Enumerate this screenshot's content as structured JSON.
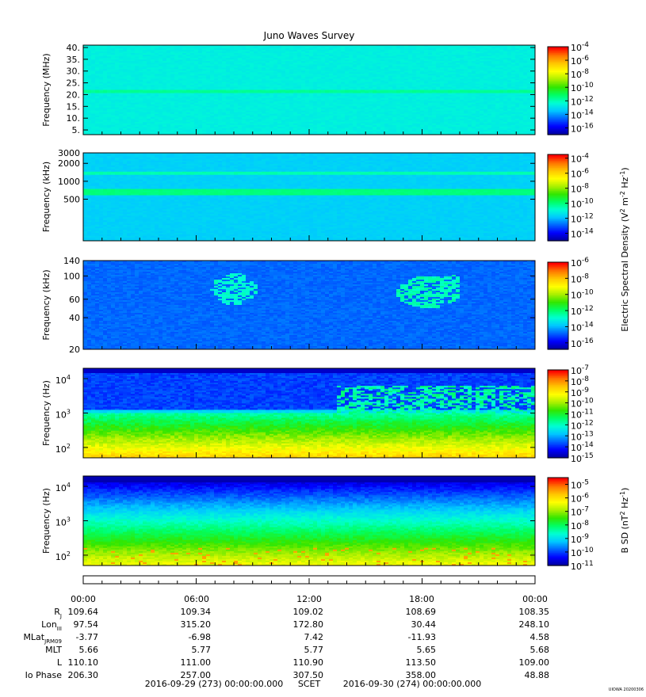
{
  "title": "Juno Waves Survey",
  "stamp": "UIOWA 20200306",
  "colors": {
    "colormap": [
      "#0000a0",
      "#0000ff",
      "#0064ff",
      "#00c8ff",
      "#00ffd2",
      "#00ff64",
      "#32e600",
      "#aaf000",
      "#ffff00",
      "#ffc800",
      "#ff7800",
      "#ff0000"
    ]
  },
  "chart_data": [
    {
      "type": "heatmap",
      "name": "hf-high",
      "ylabel": "Frequency (MHz)",
      "yscale": "linear",
      "ylim": [
        3,
        41
      ],
      "yticks": [
        "40.",
        "35.",
        "30.",
        "25.",
        "20.",
        "15.",
        "10.",
        "5."
      ],
      "ytick_values": [
        40,
        35,
        30,
        25,
        20,
        15,
        10,
        5
      ],
      "colorbar": {
        "ticks_base": "10",
        "ticks_exp": [
          "-4",
          "-6",
          "-8",
          "-10",
          "-12",
          "-14",
          "-16"
        ],
        "clim_log": [
          -17,
          -4
        ]
      },
      "background_level": -12.6,
      "bands": [
        {
          "from": 20.5,
          "to": 22.0,
          "level": -11.6
        }
      ]
    },
    {
      "type": "heatmap",
      "name": "hf-low",
      "ylabel": "Frequency (kHz)",
      "yscale": "log",
      "ylim": [
        100,
        3000
      ],
      "yticks": [
        "3000",
        "2000",
        "1000",
        "500"
      ],
      "ytick_values": [
        3000,
        2000,
        1000,
        500
      ],
      "colorbar": {
        "ticks_base": "10",
        "ticks_exp": [
          "-4",
          "-6",
          "-8",
          "-10",
          "-12",
          "-14"
        ],
        "clim_log": [
          -15,
          -3.5
        ]
      },
      "background_level": -11.7,
      "bands": [
        {
          "from": 580,
          "to": 720,
          "level": -10.0
        },
        {
          "from": 1300,
          "to": 1450,
          "level": -10.5
        }
      ]
    },
    {
      "type": "heatmap",
      "name": "lf",
      "ylabel": "Frequency (kHz)",
      "yscale": "log",
      "ylim": [
        20,
        140
      ],
      "yticks": [
        "140",
        "100",
        "60",
        "40",
        "20"
      ],
      "ytick_values": [
        140,
        100,
        60,
        40,
        20
      ],
      "colorbar": {
        "ticks_base": "10",
        "ticks_exp": [
          "-6",
          "-8",
          "-10",
          "-12",
          "-14",
          "-16"
        ],
        "clim_log": [
          -16.8,
          -6
        ]
      },
      "background_level": -14.8
    },
    {
      "type": "heatmap",
      "name": "e-field-low",
      "ylabel": "Frequency (Hz)",
      "yscale": "log",
      "ylim": [
        50,
        20000
      ],
      "yticks_base": "10",
      "yticks_exp": [
        "4",
        "3",
        "2"
      ],
      "ytick_values": [
        10000,
        1000,
        100
      ],
      "colorbar": {
        "ticks_base": "10",
        "ticks_exp": [
          "-7",
          "-8",
          "-9",
          "-10",
          "-11",
          "-12",
          "-13",
          "-14",
          "-15"
        ],
        "clim_log": [
          -15,
          -7
        ]
      }
    },
    {
      "type": "heatmap",
      "name": "b-field",
      "ylabel": "Frequency (Hz)",
      "yscale": "log",
      "ylim": [
        50,
        20000
      ],
      "yticks_base": "10",
      "yticks_exp": [
        "4",
        "3",
        "2"
      ],
      "ytick_values": [
        10000,
        1000,
        100
      ],
      "colorbar": {
        "ticks_base": "10",
        "ticks_exp": [
          "-5",
          "-6",
          "-7",
          "-8",
          "-9",
          "-10",
          "-11"
        ],
        "clim_log": [
          -11,
          -4.5
        ]
      }
    }
  ],
  "colorbar_labels": {
    "electric": "Electric Spectral Density (V",
    "electric_e1": "2",
    "electric_mid": " m",
    "electric_e2": "-2",
    "electric_mid2": " Hz",
    "electric_e3": "-1",
    "electric_end": ")",
    "bsd": "B SD (nT",
    "bsd_e1": "2",
    "bsd_mid": " Hz",
    "bsd_e2": "-1",
    "bsd_end": ")"
  },
  "ephemeris": {
    "times": [
      "00:00",
      "06:00",
      "12:00",
      "18:00",
      "00:00"
    ],
    "rows": [
      {
        "label": "R",
        "sub": "J",
        "values": [
          "109.64",
          "109.34",
          "109.02",
          "108.69",
          "108.35"
        ]
      },
      {
        "label": "Lon",
        "sub": "III",
        "values": [
          "97.54",
          "315.20",
          "172.80",
          "30.44",
          "248.10"
        ]
      },
      {
        "label": "MLat",
        "sub": "JRM09",
        "values": [
          "-3.77",
          "-6.98",
          "7.42",
          "-11.93",
          "4.58"
        ]
      },
      {
        "label": "MLT",
        "sub": "",
        "values": [
          "5.66",
          "5.77",
          "5.77",
          "5.65",
          "5.68"
        ]
      },
      {
        "label": "L",
        "sub": "",
        "values": [
          "110.10",
          "111.00",
          "110.90",
          "113.50",
          "109.00"
        ]
      },
      {
        "label": "Io Phase",
        "sub": "",
        "values": [
          "206.30",
          "257.00",
          "307.50",
          "358.00",
          "48.88"
        ]
      }
    ],
    "range_start": "2016-09-29 (273) 00:00:00.000",
    "range_label": "SCET",
    "range_end": "2016-09-30 (274) 00:00:00.000"
  }
}
